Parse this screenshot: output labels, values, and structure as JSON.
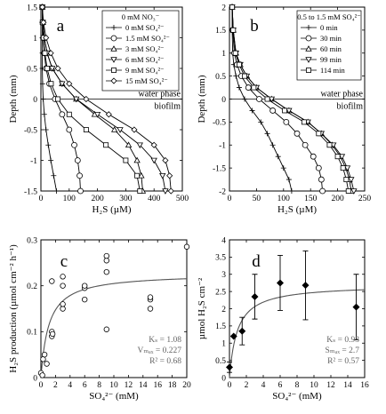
{
  "chart_data": [
    {
      "id": "a",
      "type": "line",
      "panel_label": "a",
      "xlabel": "H₂S (µM)",
      "ylabel": "Depth (mm)",
      "xlim": [
        0,
        500
      ],
      "ylim": [
        -1.5,
        1.5
      ],
      "xticks": [
        0,
        100,
        200,
        300,
        400,
        500
      ],
      "yticks": [
        -1.5,
        -1,
        -0.5,
        0,
        0.5,
        1,
        1.5
      ],
      "legend_title": "0 mM NO₃⁻",
      "legend_position": "top-right",
      "annotations": [
        "water phase",
        "biofilm"
      ],
      "depth": [
        1.5,
        1.25,
        1.0,
        0.75,
        0.5,
        0.25,
        0.0,
        -0.25,
        -0.5,
        -0.75,
        -1.0,
        -1.25,
        -1.5
      ],
      "series": [
        {
          "name": "0 mM SO₄²⁻",
          "marker": "plus",
          "values": [
            5,
            5,
            5,
            5,
            5,
            6,
            8,
            12,
            18,
            26,
            35,
            45,
            55
          ]
        },
        {
          "name": "1.5 mM SO₄²⁻",
          "marker": "circle",
          "values": [
            5,
            6,
            8,
            12,
            18,
            30,
            50,
            75,
            100,
            118,
            130,
            137,
            140
          ]
        },
        {
          "name": "3 mM SO₄²⁻",
          "marker": "triangle",
          "values": [
            5,
            7,
            12,
            22,
            40,
            75,
            125,
            190,
            260,
            310,
            340,
            355,
            360
          ]
        },
        {
          "name": "6 mM SO₄²⁻",
          "marker": "triangle-down",
          "values": [
            5,
            7,
            12,
            22,
            40,
            75,
            125,
            200,
            280,
            350,
            400,
            430,
            440
          ]
        },
        {
          "name": "9 mM SO₄²⁻",
          "marker": "square",
          "values": [
            5,
            6,
            9,
            14,
            22,
            36,
            60,
            100,
            160,
            230,
            300,
            340,
            350
          ]
        },
        {
          "name": "15 mM SO₄²⁻",
          "marker": "diamond",
          "values": [
            5,
            9,
            18,
            35,
            60,
            100,
            160,
            240,
            330,
            400,
            440,
            455,
            460
          ]
        }
      ]
    },
    {
      "id": "b",
      "type": "line",
      "panel_label": "b",
      "xlabel": "H₂S (µM)",
      "ylabel": "Depth (mm)",
      "xlim": [
        0,
        250
      ],
      "ylim": [
        -2,
        2
      ],
      "xticks": [
        0,
        50,
        100,
        150,
        200,
        250
      ],
      "yticks": [
        -2,
        -1.5,
        -1,
        -0.5,
        0,
        0.5,
        1,
        1.5,
        2
      ],
      "legend_title": "0.5 to 1.5 mM SO₄²⁻",
      "legend_position": "top-right",
      "annotations": [
        "water phase",
        "biofilm"
      ],
      "depth": [
        2.0,
        1.5,
        1.0,
        0.75,
        0.5,
        0.25,
        0.0,
        -0.25,
        -0.5,
        -0.75,
        -1.0,
        -1.25,
        -1.5,
        -1.75,
        -2.0
      ],
      "series": [
        {
          "name": "0 min",
          "marker": "plus",
          "values": [
            5,
            5,
            6,
            8,
            12,
            18,
            28,
            42,
            58,
            70,
            80,
            90,
            100,
            110,
            115
          ]
        },
        {
          "name": "30 min",
          "marker": "circle",
          "values": [
            5,
            6,
            9,
            14,
            22,
            35,
            55,
            80,
            105,
            125,
            140,
            155,
            165,
            170,
            172
          ]
        },
        {
          "name": "60 min",
          "marker": "triangle",
          "values": [
            5,
            7,
            12,
            20,
            32,
            50,
            78,
            110,
            145,
            170,
            190,
            205,
            215,
            222,
            225
          ]
        },
        {
          "name": "99 min",
          "marker": "triangle-down",
          "values": [
            5,
            7,
            12,
            20,
            32,
            50,
            78,
            110,
            145,
            170,
            192,
            208,
            218,
            225,
            230
          ]
        },
        {
          "name": "114 min",
          "marker": "square",
          "values": [
            5,
            7,
            11,
            18,
            28,
            45,
            70,
            102,
            138,
            165,
            185,
            200,
            210,
            216,
            220
          ]
        }
      ]
    },
    {
      "id": "c",
      "type": "scatter",
      "panel_label": "c",
      "xlabel": "SO₄²⁻ (mM)",
      "ylabel": "H₂S production (µmol cm⁻² h⁻¹)",
      "xlim": [
        0,
        20
      ],
      "ylim": [
        0,
        0.3
      ],
      "xticks": [
        0,
        2,
        4,
        6,
        8,
        10,
        12,
        14,
        16,
        18,
        20
      ],
      "yticks": [
        0,
        0.1,
        0.2,
        0.3
      ],
      "points": [
        {
          "x": 0,
          "y": 0.01
        },
        {
          "x": 0.2,
          "y": 0.005
        },
        {
          "x": 0.3,
          "y": 0.04
        },
        {
          "x": 0.5,
          "y": 0.05
        },
        {
          "x": 0.8,
          "y": 0.03
        },
        {
          "x": 1.5,
          "y": 0.09
        },
        {
          "x": 1.5,
          "y": 0.1
        },
        {
          "x": 1.6,
          "y": 0.095
        },
        {
          "x": 1.5,
          "y": 0.21
        },
        {
          "x": 3,
          "y": 0.15
        },
        {
          "x": 3,
          "y": 0.16
        },
        {
          "x": 3,
          "y": 0.2
        },
        {
          "x": 3,
          "y": 0.22
        },
        {
          "x": 6,
          "y": 0.17
        },
        {
          "x": 6,
          "y": 0.195
        },
        {
          "x": 6,
          "y": 0.2
        },
        {
          "x": 9,
          "y": 0.105
        },
        {
          "x": 9,
          "y": 0.23
        },
        {
          "x": 9,
          "y": 0.255
        },
        {
          "x": 9,
          "y": 0.265
        },
        {
          "x": 15,
          "y": 0.15
        },
        {
          "x": 15,
          "y": 0.17
        },
        {
          "x": 15,
          "y": 0.175
        },
        {
          "x": 20,
          "y": 0.285
        }
      ],
      "fit": {
        "Vmax": 0.227,
        "Ks": 1.08
      },
      "stats": [
        "Kₛ = 1.08",
        "Vₘₐₓ = 0.227",
        "R² = 0.68"
      ]
    },
    {
      "id": "d",
      "type": "scatter",
      "panel_label": "d",
      "xlabel": "SO₄²⁻ (mM)",
      "ylabel": "µmol H₂S cm⁻²",
      "xlim": [
        0,
        16
      ],
      "ylim": [
        0,
        4
      ],
      "xticks": [
        0,
        2,
        4,
        6,
        8,
        10,
        12,
        14,
        16
      ],
      "yticks": [
        0,
        0.5,
        1,
        1.5,
        2,
        2.5,
        3,
        3.5,
        4
      ],
      "points": [
        {
          "x": 0,
          "y": 0.3,
          "err": 0.15
        },
        {
          "x": 0.5,
          "y": 1.2,
          "err": 0
        },
        {
          "x": 1.5,
          "y": 1.35,
          "err": 0.4
        },
        {
          "x": 3,
          "y": 2.35,
          "err": 0.65
        },
        {
          "x": 6,
          "y": 2.75,
          "err": 0.8
        },
        {
          "x": 9,
          "y": 2.68,
          "err": 1.0
        },
        {
          "x": 15,
          "y": 2.05,
          "err": 0.95
        }
      ],
      "fit": {
        "Smax": 2.7,
        "Ks": 0.93
      },
      "stats": [
        "Kₛ = 0.93",
        "Sₘₐₓ = 2.7",
        "R² = 0.57"
      ]
    }
  ]
}
